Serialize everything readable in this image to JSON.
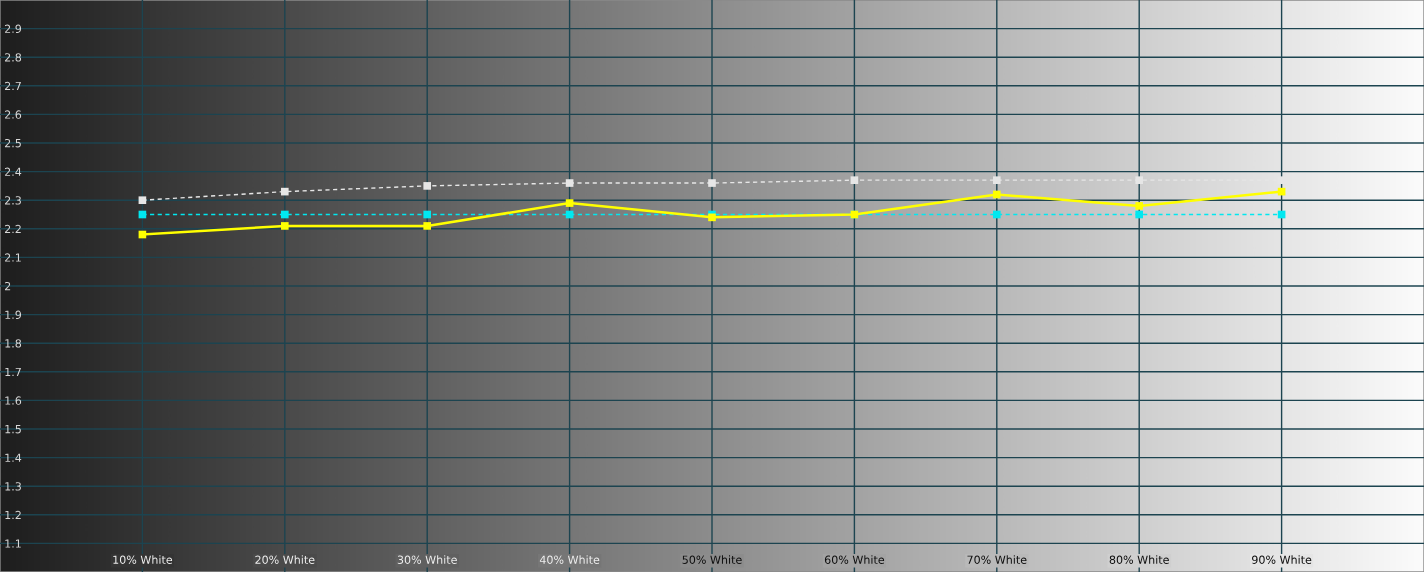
{
  "chart_data": {
    "type": "line",
    "categories": [
      "10% White",
      "20% White",
      "30% White",
      "40% White",
      "50% White",
      "60% White",
      "70% White",
      "80% White",
      "90% White"
    ],
    "series": [
      {
        "color": "#e6e6e6",
        "line_style": "dashed",
        "values": [
          2.3,
          2.33,
          2.35,
          2.36,
          2.36,
          2.37,
          2.37,
          2.37,
          2.37
        ]
      },
      {
        "color": "#00e8f0",
        "line_style": "dashed",
        "values": [
          2.25,
          2.25,
          2.25,
          2.25,
          2.25,
          2.25,
          2.25,
          2.25,
          2.25
        ]
      },
      {
        "color": "#ffff00",
        "line_style": "solid",
        "values": [
          2.18,
          2.21,
          2.21,
          2.29,
          2.24,
          2.25,
          2.32,
          2.28,
          2.33
        ]
      }
    ],
    "ylim": [
      1,
      3
    ],
    "yticks": [
      1.1,
      1.2,
      1.3,
      1.4,
      1.5,
      1.6,
      1.7,
      1.8,
      1.9,
      2,
      2.1,
      2.2,
      2.3,
      2.4,
      2.5,
      2.6,
      2.7,
      2.8,
      2.9
    ],
    "grid": true,
    "marker": "square"
  }
}
